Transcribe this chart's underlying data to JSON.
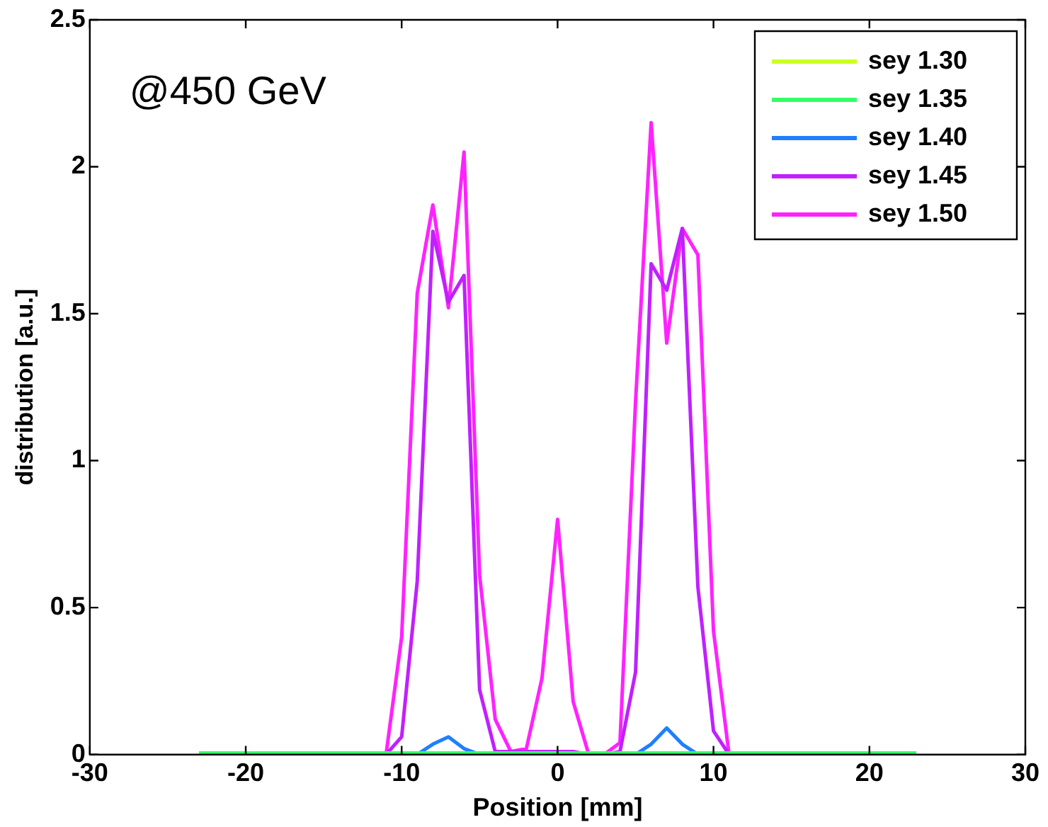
{
  "chart_data": {
    "type": "line",
    "xlabel": "Position [mm]",
    "ylabel": "distribution [a.u.]",
    "annotations": [
      "@450 GeV"
    ],
    "x": [
      -23,
      -22,
      -21,
      -20,
      -19,
      -18,
      -17,
      -16,
      -15,
      -14,
      -13,
      -12,
      -11,
      -10,
      -9,
      -8,
      -7,
      -6,
      -5,
      -4,
      -3,
      -2,
      -1,
      0,
      1,
      2,
      3,
      4,
      5,
      6,
      7,
      8,
      9,
      10,
      11,
      12,
      13,
      14,
      15,
      16,
      17,
      18,
      19,
      20,
      21,
      22,
      23
    ],
    "xlim": [
      -30,
      30
    ],
    "xticks": [
      -30,
      -20,
      -10,
      0,
      10,
      20,
      30
    ],
    "ylim": [
      0,
      2.5
    ],
    "yticks": [
      0,
      0.5,
      1,
      1.5,
      2,
      2.5
    ],
    "grid": false,
    "legend": "top right",
    "marker": "none",
    "line_style": "solid",
    "series": [
      {
        "name": "sey 1.30",
        "color": "#ccff22",
        "values": [
          null,
          null,
          null,
          null,
          null,
          null,
          null,
          null,
          null,
          null,
          null,
          null,
          null,
          null,
          null,
          null,
          null,
          null,
          null,
          null,
          null,
          null,
          null,
          null,
          null,
          null,
          null,
          null,
          null,
          null,
          null,
          null,
          null,
          null,
          null,
          null,
          null,
          null,
          null,
          null,
          null,
          null,
          null,
          null,
          null,
          null,
          null
        ]
      },
      {
        "name": "sey 1.35",
        "color": "#33ff66",
        "values": [
          0.005,
          0.005,
          0.005,
          0.005,
          0.005,
          0.005,
          0.005,
          0.005,
          0.005,
          0.005,
          0.005,
          0.005,
          0.005,
          0.005,
          0.005,
          0.005,
          0.005,
          0.005,
          0.005,
          0.005,
          0.005,
          0.005,
          0.005,
          0.005,
          0.005,
          0.005,
          0.005,
          0.005,
          0.005,
          0.005,
          0.005,
          0.005,
          0.005,
          0.005,
          0.005,
          0.005,
          0.005,
          0.005,
          0.005,
          0.005,
          0.005,
          0.005,
          0.005,
          0.005,
          0.005,
          0.005,
          0.005
        ]
      },
      {
        "name": "sey 1.40",
        "color": "#1f7fff",
        "values": [
          null,
          null,
          null,
          null,
          null,
          null,
          null,
          null,
          null,
          null,
          null,
          null,
          null,
          null,
          0,
          0.035,
          0.06,
          0.02,
          0,
          null,
          null,
          null,
          null,
          null,
          null,
          null,
          null,
          null,
          0,
          0.035,
          0.09,
          0.035,
          0,
          null,
          null,
          null,
          null,
          null,
          null,
          null,
          null,
          null,
          null,
          null,
          null,
          null,
          null
        ]
      },
      {
        "name": "sey 1.45",
        "color": "#c020ff",
        "values": [
          null,
          null,
          null,
          null,
          null,
          null,
          null,
          null,
          null,
          null,
          null,
          null,
          0,
          0.06,
          0.59,
          1.78,
          1.54,
          1.63,
          0.22,
          0.01,
          0.01,
          0.01,
          0.01,
          0.01,
          0.01,
          0,
          0,
          0.01,
          0.28,
          1.67,
          1.58,
          1.79,
          0.57,
          0.08,
          0,
          null,
          null,
          null,
          null,
          null,
          null,
          null,
          null,
          null,
          null,
          null,
          null
        ]
      },
      {
        "name": "sey 1.50",
        "color": "#ff22ff",
        "values": [
          null,
          null,
          null,
          null,
          null,
          null,
          null,
          null,
          null,
          null,
          null,
          null,
          0,
          0.4,
          1.57,
          1.87,
          1.52,
          2.05,
          0.61,
          0.12,
          0.01,
          0.02,
          0.26,
          0.8,
          0.18,
          0,
          0,
          0.04,
          1.2,
          2.15,
          1.4,
          1.79,
          1.7,
          0.42,
          0,
          null,
          null,
          null,
          null,
          null,
          null,
          null,
          null,
          null,
          null,
          null,
          null
        ]
      }
    ]
  }
}
